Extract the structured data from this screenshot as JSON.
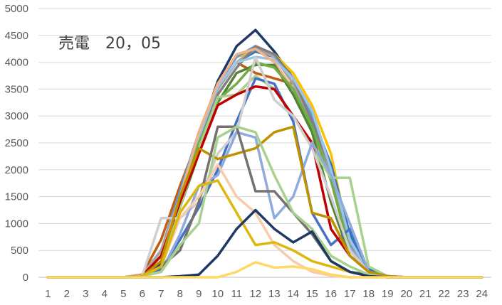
{
  "chart_data": {
    "type": "line",
    "title": "売電　20，05",
    "xlabel": "",
    "ylabel": "",
    "x": [
      1,
      2,
      3,
      4,
      5,
      6,
      7,
      8,
      9,
      10,
      11,
      12,
      13,
      14,
      15,
      16,
      17,
      18,
      19,
      20,
      21,
      22,
      23,
      24
    ],
    "x_ticks": [
      "1",
      "2",
      "3",
      "4",
      "5",
      "6",
      "7",
      "8",
      "9",
      "10",
      "11",
      "12",
      "13",
      "14",
      "15",
      "16",
      "17",
      "18",
      "19",
      "20",
      "21",
      "22",
      "23",
      "24"
    ],
    "y_ticks": [
      "0",
      "500",
      "1000",
      "1500",
      "2000",
      "2500",
      "3000",
      "3500",
      "4000",
      "4500",
      "5000"
    ],
    "ylim": [
      0,
      5000
    ],
    "grid": "horizontal",
    "legend": "none",
    "series": [
      {
        "color": "#203864",
        "values": [
          0,
          0,
          0,
          0,
          0,
          30,
          250,
          1400,
          2600,
          3650,
          4300,
          4600,
          4200,
          3700,
          3100,
          2000,
          600,
          100,
          20,
          0,
          0,
          0,
          0,
          0
        ]
      },
      {
        "color": "#ffc000",
        "values": [
          0,
          0,
          0,
          0,
          0,
          30,
          300,
          1500,
          2700,
          3600,
          4100,
          4200,
          4150,
          3800,
          3200,
          2300,
          600,
          100,
          20,
          0,
          0,
          0,
          0,
          0
        ]
      },
      {
        "color": "#c55a11",
        "values": [
          0,
          0,
          0,
          0,
          0,
          50,
          700,
          1700,
          2600,
          3500,
          4000,
          3800,
          3700,
          3600,
          3000,
          1800,
          500,
          100,
          20,
          0,
          0,
          0,
          0,
          0
        ]
      },
      {
        "color": "#5b9bd5",
        "values": [
          0,
          0,
          0,
          0,
          0,
          40,
          500,
          1600,
          2700,
          3600,
          4100,
          4300,
          4100,
          3600,
          3000,
          2100,
          600,
          100,
          20,
          0,
          0,
          0,
          0,
          0
        ]
      },
      {
        "color": "#2e75b6",
        "values": [
          0,
          0,
          0,
          0,
          0,
          30,
          400,
          1500,
          2600,
          3500,
          4000,
          4200,
          4100,
          3700,
          2900,
          2100,
          800,
          150,
          20,
          0,
          0,
          0,
          0,
          0
        ]
      },
      {
        "color": "#a5a5a5",
        "values": [
          0,
          0,
          0,
          0,
          0,
          40,
          500,
          1500,
          2600,
          3500,
          4000,
          4250,
          4100,
          3600,
          2800,
          1900,
          550,
          100,
          20,
          0,
          0,
          0,
          0,
          0
        ]
      },
      {
        "color": "#808080",
        "values": [
          0,
          0,
          0,
          0,
          0,
          30,
          400,
          1400,
          2500,
          3400,
          3900,
          4300,
          4150,
          3700,
          2900,
          2000,
          500,
          100,
          20,
          0,
          0,
          0,
          0,
          0
        ]
      },
      {
        "color": "#9dc3e6",
        "values": [
          0,
          0,
          0,
          0,
          0,
          30,
          400,
          1400,
          2600,
          3550,
          4000,
          4100,
          4050,
          3700,
          3100,
          2000,
          700,
          100,
          20,
          0,
          0,
          0,
          0,
          0
        ]
      },
      {
        "color": "#f4b183",
        "values": [
          0,
          0,
          0,
          0,
          0,
          40,
          400,
          1500,
          2700,
          3600,
          4150,
          4250,
          4000,
          3500,
          2700,
          1800,
          500,
          100,
          20,
          0,
          0,
          0,
          0,
          0
        ]
      },
      {
        "color": "#548235",
        "values": [
          0,
          0,
          0,
          0,
          0,
          30,
          300,
          1300,
          2300,
          3250,
          3800,
          3950,
          3950,
          3400,
          2700,
          1400,
          400,
          100,
          20,
          0,
          0,
          0,
          0,
          0
        ]
      },
      {
        "color": "#70ad47",
        "values": [
          0,
          0,
          0,
          0,
          0,
          30,
          300,
          1400,
          2500,
          3300,
          3600,
          4000,
          3900,
          3500,
          2800,
          1800,
          500,
          100,
          20,
          0,
          0,
          0,
          0,
          0
        ]
      },
      {
        "color": "#a9d18e",
        "values": [
          0,
          0,
          0,
          0,
          0,
          30,
          300,
          1300,
          2400,
          3350,
          3400,
          3750,
          3500,
          3000,
          2400,
          1850,
          1850,
          200,
          20,
          0,
          0,
          0,
          0,
          0
        ]
      },
      {
        "color": "#4472c4",
        "values": [
          0,
          0,
          0,
          0,
          0,
          20,
          150,
          700,
          1300,
          2000,
          2900,
          3700,
          3600,
          2900,
          1200,
          600,
          900,
          100,
          20,
          0,
          0,
          0,
          0,
          0
        ]
      },
      {
        "color": "#c00000",
        "values": [
          0,
          0,
          0,
          0,
          0,
          30,
          400,
          1400,
          2300,
          3200,
          3400,
          3550,
          3500,
          3000,
          2500,
          900,
          400,
          100,
          20,
          0,
          0,
          0,
          0,
          0
        ]
      },
      {
        "color": "#d0cece",
        "values": [
          0,
          0,
          0,
          0,
          0,
          30,
          1100,
          1100,
          1400,
          2300,
          2700,
          4100,
          3300,
          3000,
          2400,
          1500,
          500,
          100,
          20,
          0,
          0,
          0,
          0,
          0
        ]
      },
      {
        "color": "#8faadc",
        "values": [
          0,
          0,
          0,
          0,
          0,
          20,
          100,
          800,
          1700,
          1900,
          2700,
          2600,
          1100,
          1500,
          2500,
          1900,
          1000,
          100,
          20,
          0,
          0,
          0,
          0,
          0
        ]
      },
      {
        "color": "#bf9000",
        "values": [
          0,
          0,
          0,
          0,
          0,
          20,
          300,
          1500,
          2400,
          2200,
          2300,
          2400,
          2700,
          2800,
          1200,
          1100,
          400,
          100,
          20,
          0,
          0,
          0,
          0,
          0
        ]
      },
      {
        "color": "#767171",
        "values": [
          0,
          0,
          0,
          0,
          0,
          20,
          200,
          500,
          1400,
          2800,
          2800,
          1600,
          1600,
          1200,
          800,
          300,
          100,
          50,
          0,
          0,
          0,
          0,
          0,
          0
        ]
      },
      {
        "color": "#a9d18e",
        "values": [
          0,
          0,
          0,
          0,
          0,
          20,
          100,
          600,
          1000,
          2600,
          2800,
          2700,
          1900,
          1200,
          900,
          400,
          200,
          50,
          0,
          0,
          0,
          0,
          0,
          0
        ]
      },
      {
        "color": "#f8cbad",
        "values": [
          0,
          0,
          0,
          0,
          0,
          20,
          200,
          1100,
          1500,
          2100,
          1500,
          1200,
          600,
          300,
          100,
          30,
          0,
          0,
          0,
          0,
          0,
          0,
          0,
          0
        ]
      },
      {
        "color": "#deb70e",
        "values": [
          0,
          0,
          0,
          0,
          0,
          20,
          200,
          1200,
          1700,
          1800,
          1200,
          600,
          650,
          500,
          300,
          200,
          100,
          20,
          0,
          0,
          0,
          0,
          0,
          0
        ]
      },
      {
        "color": "#1f3864",
        "values": [
          0,
          0,
          0,
          0,
          0,
          0,
          0,
          20,
          50,
          400,
          900,
          1250,
          900,
          650,
          850,
          300,
          100,
          20,
          0,
          0,
          0,
          0,
          0,
          0
        ]
      },
      {
        "color": "#ffd966",
        "values": [
          0,
          0,
          0,
          0,
          0,
          0,
          0,
          0,
          0,
          0,
          100,
          280,
          180,
          200,
          150,
          50,
          0,
          0,
          0,
          0,
          0,
          0,
          0,
          0
        ]
      }
    ]
  }
}
